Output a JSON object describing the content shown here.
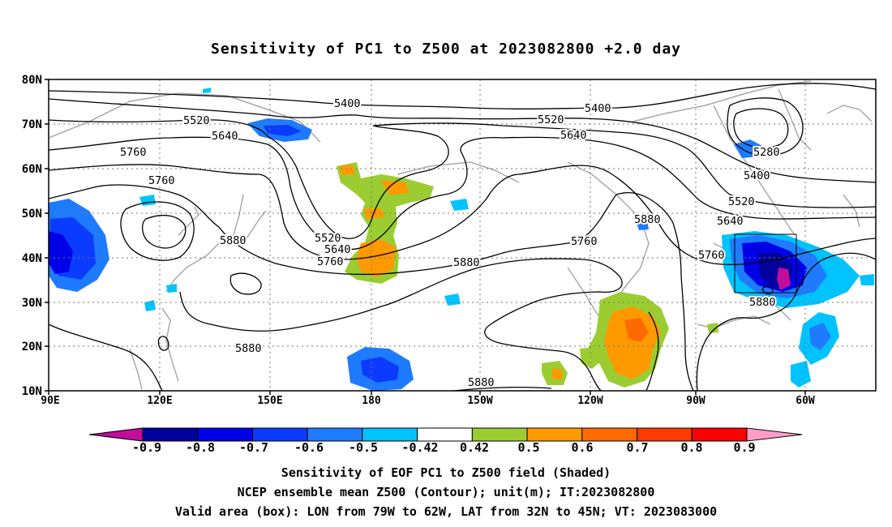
{
  "title": "Sensitivity of PC1 to Z500 at 2023082800 +2.0 day",
  "lat_labels": [
    "80N",
    "70N",
    "60N",
    "50N",
    "40N",
    "30N",
    "20N",
    "10N"
  ],
  "lon_labels": [
    "90E",
    "120E",
    "150E",
    "180",
    "150W",
    "120W",
    "90W",
    "60W"
  ],
  "contour_labels": [
    "5400",
    "5520",
    "5640",
    "5760",
    "5760",
    "5880",
    "5520",
    "5640",
    "5760",
    "5880",
    "5880",
    "5400",
    "5520",
    "5640",
    "5280",
    "5400",
    "5520",
    "5640",
    "5760",
    "5880",
    "5760",
    "5880",
    "5880"
  ],
  "colorbar": {
    "labels": [
      "-0.9",
      "-0.8",
      "-0.7",
      "-0.6",
      "-0.5",
      "-0.42",
      "0.42",
      "0.5",
      "0.6",
      "0.7",
      "0.8",
      "0.9"
    ],
    "colors": [
      "#c20d9a",
      "#00009c",
      "#0000e6",
      "#0b3bff",
      "#1e7bff",
      "#00c3ff",
      "#ffffff",
      "#9bcd32",
      "#ff9900",
      "#ff6a00",
      "#ff3a00",
      "#ff0000",
      "#ff9ec8"
    ]
  },
  "captions": [
    "Sensitivity of EOF PC1 to Z500 field (Shaded)",
    "NCEP ensemble mean Z500 (Contour); unit(m); IT:2023082800",
    "Valid area (box): LON from 79W to 62W, LAT from 32N to 45N; VT: 2023083000"
  ]
}
